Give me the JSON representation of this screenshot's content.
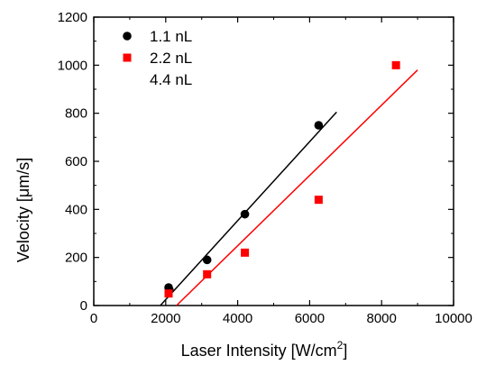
{
  "chart_data": {
    "type": "scatter",
    "xlabel": "Laser Intensity [W/cm",
    "xlabel_sup": "2",
    "xlabel_end": "]",
    "ylabel": "Velocity [μm/s]",
    "xlim": [
      0,
      10000
    ],
    "ylim": [
      0,
      1200
    ],
    "x_ticks": [
      0,
      2000,
      4000,
      6000,
      8000,
      10000
    ],
    "y_ticks": [
      0,
      200,
      400,
      600,
      800,
      1000,
      1200
    ],
    "grid": false,
    "legend_position": "top-left",
    "series": [
      {
        "name": "1.1 nL",
        "marker": "circle",
        "color": "#000000",
        "points": [
          {
            "x": 2080,
            "y": 75
          },
          {
            "x": 2100,
            "y": 65
          },
          {
            "x": 3150,
            "y": 190
          },
          {
            "x": 4200,
            "y": 380
          },
          {
            "x": 6250,
            "y": 750
          }
        ],
        "fit_line": {
          "x": [
            1850,
            6750
          ],
          "y": [
            0,
            805
          ]
        }
      },
      {
        "name": "2.2 nL",
        "marker": "square",
        "color": "#ff0000",
        "points": [
          {
            "x": 2080,
            "y": 50
          },
          {
            "x": 3150,
            "y": 130
          },
          {
            "x": 4200,
            "y": 220
          },
          {
            "x": 6250,
            "y": 440
          },
          {
            "x": 8400,
            "y": 1000
          }
        ],
        "fit_line": {
          "x": [
            2300,
            9000
          ],
          "y": [
            0,
            980
          ]
        }
      },
      {
        "name": "4.4 nL",
        "marker": "none",
        "color": "#000000",
        "points": []
      }
    ]
  }
}
